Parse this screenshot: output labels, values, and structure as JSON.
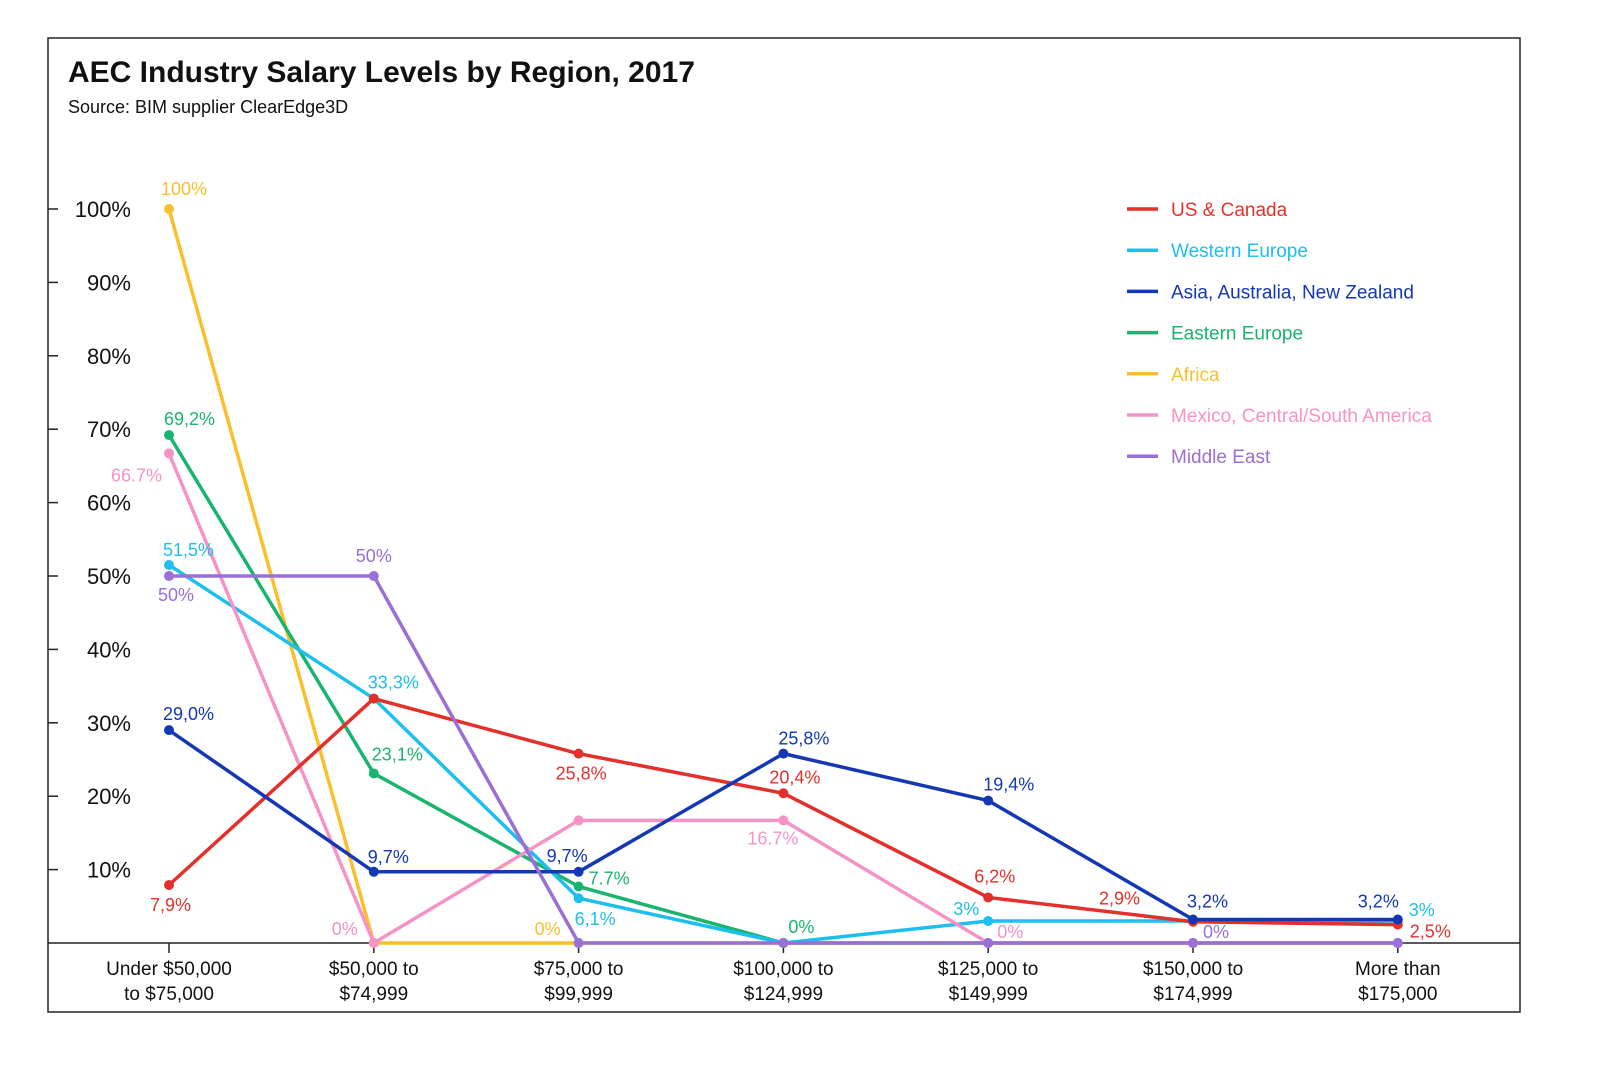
{
  "chart_data": {
    "type": "line",
    "title": "AEC Industry Salary Levels by Region, 2017",
    "subtitle": "Source: BIM supplier ClearEdge3D",
    "xlabel": "",
    "ylabel": "",
    "ylim": [
      0,
      100
    ],
    "y_ticks": [
      "10%",
      "20%",
      "30%",
      "40%",
      "50%",
      "60%",
      "70%",
      "80%",
      "90%",
      "100%"
    ],
    "grid": false,
    "legend_position": "top-right",
    "categories": [
      [
        "Under $50,000",
        "to $75,000"
      ],
      [
        "$50,000 to",
        "$74,999"
      ],
      [
        "$75,000 to",
        "$99,999"
      ],
      [
        "$100,000 to",
        "$124,999"
      ],
      [
        "$125,000 to",
        "$149,999"
      ],
      [
        "$150,000 to",
        "$174,999"
      ],
      [
        "More than",
        "$175,000"
      ]
    ],
    "series": [
      {
        "name": "US & Canada",
        "color": "#e4302a",
        "values": [
          7.9,
          33.3,
          25.8,
          20.4,
          6.2,
          2.9,
          2.5
        ],
        "labels": [
          "7,9%",
          null,
          "25,8%",
          "20,4%",
          "6,2%",
          "2,9%",
          "2,5%"
        ]
      },
      {
        "name": "Western Europe",
        "color": "#1dbfef",
        "values": [
          51.5,
          33.3,
          6.1,
          0,
          3,
          3,
          3
        ],
        "labels": [
          "51,5%",
          "33,3%",
          "6,1%",
          null,
          "3%",
          null,
          "3%"
        ]
      },
      {
        "name": "Asia, Australia, New Zealand",
        "color": "#1437b4",
        "values": [
          29.0,
          9.7,
          9.7,
          25.8,
          19.4,
          3.2,
          3.2
        ],
        "labels": [
          "29,0%",
          "9,7%",
          "9,7%",
          "25,8%",
          "19,4%",
          "3,2%",
          "3,2%"
        ]
      },
      {
        "name": "Eastern Europe",
        "color": "#19b46e",
        "values": [
          69.2,
          23.1,
          7.7,
          0,
          0,
          0,
          0
        ],
        "labels": [
          "69,2%",
          "23,1%",
          "7.7%",
          "0%",
          null,
          null,
          null
        ]
      },
      {
        "name": "Africa",
        "color": "#f9bf2c",
        "values": [
          100,
          0,
          0,
          0,
          0,
          0,
          0
        ],
        "labels": [
          "100%",
          null,
          "0%",
          null,
          null,
          null,
          null
        ]
      },
      {
        "name": "Mexico, Central/South America",
        "color": "#f593c6",
        "values": [
          66.7,
          0,
          16.7,
          16.7,
          0,
          0,
          0
        ],
        "labels": [
          "66.7%",
          "0%",
          null,
          "16.7%",
          "0%",
          null,
          null
        ]
      },
      {
        "name": "Middle East",
        "color": "#9a6fd6",
        "values": [
          50,
          50,
          0,
          0,
          0,
          0,
          0
        ],
        "labels": [
          "50%",
          "50%",
          null,
          null,
          null,
          "0%",
          null
        ]
      }
    ]
  }
}
